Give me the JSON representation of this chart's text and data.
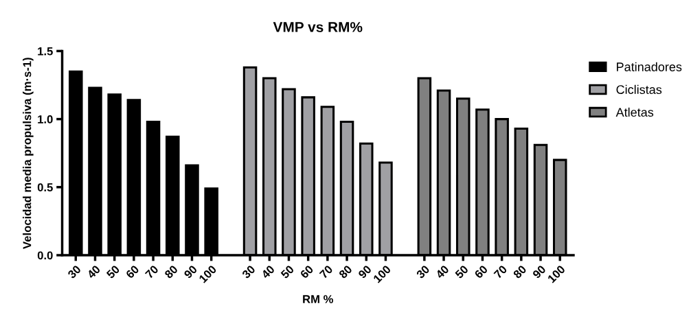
{
  "chart_data": {
    "type": "bar",
    "title": "VMP vs RM%",
    "xlabel": "RM %",
    "ylabel": "Velocidad media propulsiva (m·s-1)",
    "categories": [
      "30",
      "40",
      "50",
      "60",
      "70",
      "80",
      "90",
      "100",
      null,
      "30",
      "40",
      "50",
      "60",
      "70",
      "80",
      "90",
      "100",
      null,
      "30",
      "40",
      "50",
      "60",
      "70",
      "80",
      "90",
      "100"
    ],
    "series": [
      {
        "name": "Patinadores",
        "color": "#000000",
        "values": [
          1.35,
          1.23,
          1.18,
          1.14,
          0.98,
          0.87,
          0.66,
          0.49,
          null,
          null,
          null,
          null,
          null,
          null,
          null,
          null,
          null,
          null,
          null,
          null,
          null,
          null,
          null,
          null,
          null,
          null
        ]
      },
      {
        "name": "Ciclistas",
        "color": "#a0a0a4",
        "values": [
          null,
          null,
          null,
          null,
          null,
          null,
          null,
          null,
          null,
          1.38,
          1.3,
          1.22,
          1.16,
          1.09,
          0.98,
          0.82,
          0.68,
          null,
          null,
          null,
          null,
          null,
          null,
          null,
          null,
          null
        ]
      },
      {
        "name": "Atletas",
        "color": "#808080",
        "values": [
          null,
          null,
          null,
          null,
          null,
          null,
          null,
          null,
          null,
          null,
          null,
          null,
          null,
          null,
          null,
          null,
          null,
          null,
          1.3,
          1.21,
          1.15,
          1.07,
          1.0,
          0.93,
          0.81,
          0.7
        ]
      }
    ],
    "ylim": [
      0,
      1.5
    ],
    "yticks": [
      {
        "value": 0,
        "label": "0.0"
      },
      {
        "value": 0.5,
        "label": "0.5"
      },
      {
        "value": 1.0,
        "label": "1.0"
      },
      {
        "value": 1.5,
        "label": "1.5"
      }
    ],
    "grid": false,
    "legend": "right"
  }
}
